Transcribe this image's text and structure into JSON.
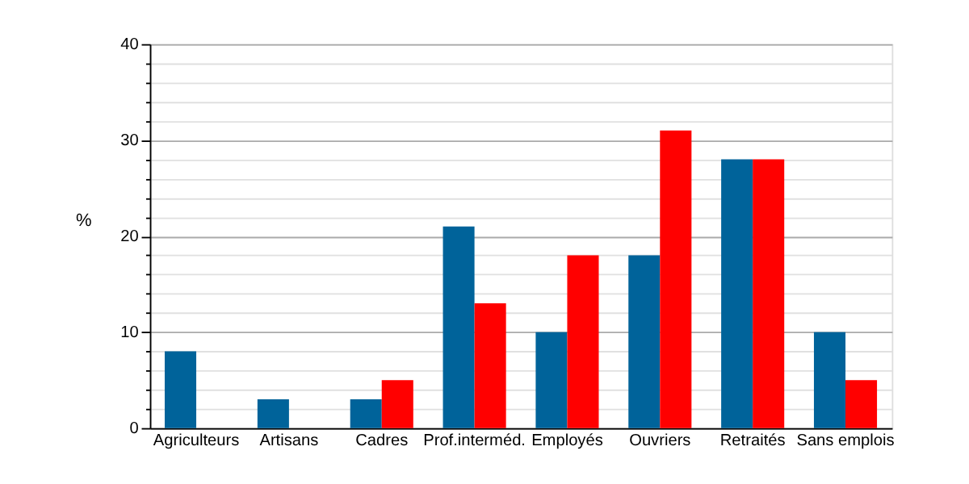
{
  "chart_data": {
    "type": "bar",
    "ylabel": "%",
    "categories": [
      "Agriculteurs",
      "Artisans",
      "Cadres",
      "Prof.interméd.",
      "Employés",
      "Ouvriers",
      "Retraités",
      "Sans emplois"
    ],
    "series": [
      {
        "color": "#00639a",
        "values": [
          8,
          3,
          3,
          21,
          10,
          18,
          28,
          10
        ]
      },
      {
        "color": "#ff0000",
        "values": [
          null,
          null,
          5,
          13,
          18,
          31,
          28,
          5
        ]
      }
    ],
    "ylim": [
      0,
      40
    ],
    "yticks": [
      0,
      {
        "value": 2,
        "label": null
      },
      {
        "value": 4,
        "label": null
      },
      {
        "value": 6,
        "label": null
      },
      {
        "value": 8,
        "label": null
      },
      10,
      {
        "value": 12,
        "label": null
      },
      {
        "value": 14,
        "label": null
      },
      {
        "value": 16,
        "label": null
      },
      {
        "value": 18,
        "label": null
      },
      20,
      {
        "value": 22,
        "label": null
      },
      {
        "value": 24,
        "label": null
      },
      {
        "value": 26,
        "label": null
      },
      {
        "value": 28,
        "label": null
      },
      30,
      {
        "value": 32,
        "label": null
      },
      {
        "value": 34,
        "label": null
      },
      {
        "value": 36,
        "label": null
      },
      {
        "value": 38,
        "label": null
      },
      40
    ],
    "grid": "y",
    "legend": false
  }
}
